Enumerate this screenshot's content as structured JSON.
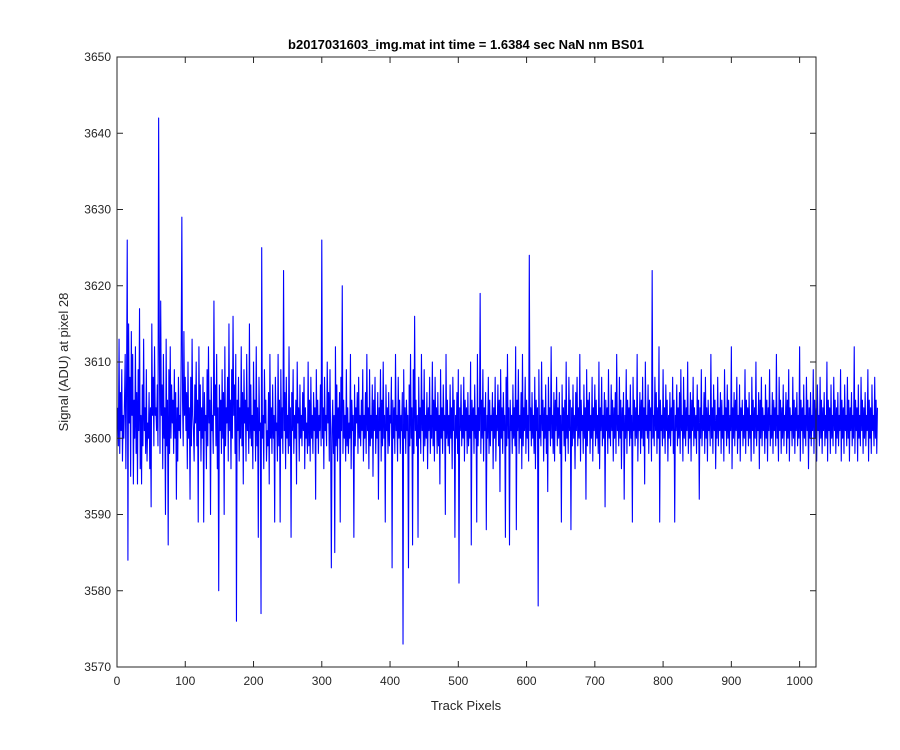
{
  "chart_data": {
    "type": "line",
    "title": "b2017031603_img.mat int time = 1.6384 sec  NaN nm BS01",
    "xlabel": "Track Pixels",
    "ylabel": "Signal (ADU) at pixel 28",
    "xlim": [
      0,
      1024
    ],
    "ylim": [
      3570,
      3650
    ],
    "xticks": [
      0,
      100,
      200,
      300,
      400,
      500,
      600,
      700,
      800,
      900,
      1000
    ],
    "yticks": [
      3570,
      3580,
      3590,
      3600,
      3610,
      3620,
      3630,
      3640,
      3650
    ],
    "grid": false,
    "legend": "none",
    "series": [
      {
        "color": "#0000ff",
        "x_start": 1,
        "x_step": 1,
        "values": [
          3604,
          3599,
          3613,
          3598,
          3606,
          3601,
          3609,
          3597,
          3603,
          3600,
          3605,
          3611,
          3596,
          3607,
          3626,
          3584,
          3615,
          3602,
          3608,
          3595,
          3614,
          3603,
          3611,
          3594,
          3605,
          3600,
          3612,
          3598,
          3606,
          3594,
          3609,
          3601,
          3617,
          3596,
          3603,
          3594,
          3607,
          3599,
          3613,
          3601,
          3604,
          3598,
          3609,
          3597,
          3602,
          3600,
          3606,
          3596,
          3604,
          3591,
          3615,
          3603,
          3608,
          3599,
          3612,
          3603,
          3604,
          3601,
          3607,
          3599,
          3642,
          3612,
          3598,
          3618,
          3603,
          3607,
          3596,
          3611,
          3600,
          3604,
          3590,
          3613,
          3599,
          3605,
          3586,
          3609,
          3598,
          3612,
          3600,
          3607,
          3602,
          3605,
          3598,
          3609,
          3600,
          3606,
          3592,
          3604,
          3597,
          3608,
          3601,
          3603,
          3600,
          3611,
          3629,
          3605,
          3599,
          3614,
          3603,
          3608,
          3601,
          3606,
          3596,
          3610,
          3600,
          3604,
          3592,
          3608,
          3599,
          3613,
          3603,
          3601,
          3597,
          3607,
          3602,
          3610,
          3599,
          3605,
          3589,
          3612,
          3601,
          3607,
          3597,
          3604,
          3600,
          3608,
          3589,
          3606,
          3601,
          3603,
          3596,
          3609,
          3599,
          3612,
          3602,
          3605,
          3590,
          3608,
          3601,
          3603,
          3598,
          3618,
          3603,
          3607,
          3599,
          3611,
          3596,
          3604,
          3580,
          3607,
          3601,
          3605,
          3598,
          3609,
          3600,
          3606,
          3590,
          3612,
          3599,
          3604,
          3602,
          3608,
          3597,
          3615,
          3601,
          3605,
          3596,
          3609,
          3600,
          3616,
          3603,
          3607,
          3598,
          3611,
          3576,
          3605,
          3601,
          3608,
          3597,
          3604,
          3600,
          3612,
          3599,
          3606,
          3594,
          3609,
          3602,
          3605,
          3597,
          3611,
          3601,
          3604,
          3598,
          3615,
          3600,
          3607,
          3599,
          3603,
          3596,
          3610,
          3601,
          3605,
          3597,
          3612,
          3599,
          3604,
          3587,
          3608,
          3601,
          3602,
          3577,
          3625,
          3600,
          3603,
          3596,
          3609,
          3602,
          3605,
          3597,
          3601,
          3599,
          3606,
          3594,
          3611,
          3600,
          3604,
          3598,
          3607,
          3600,
          3603,
          3589,
          3608,
          3601,
          3602,
          3597,
          3611,
          3599,
          3605,
          3589,
          3609,
          3600,
          3604,
          3598,
          3622,
          3601,
          3606,
          3596,
          3608,
          3600,
          3603,
          3598,
          3612,
          3599,
          3604,
          3587,
          3606,
          3601,
          3609,
          3598,
          3603,
          3600,
          3605,
          3594,
          3610,
          3602,
          3604,
          3597,
          3607,
          3600,
          3603,
          3599,
          3606,
          3601,
          3608,
          3596,
          3604,
          3600,
          3602,
          3598,
          3610,
          3599,
          3605,
          3597,
          3608,
          3600,
          3603,
          3598,
          3606,
          3601,
          3604,
          3592,
          3609,
          3600,
          3605,
          3598,
          3603,
          3601,
          3607,
          3599,
          3626,
          3600,
          3604,
          3596,
          3608,
          3601,
          3603,
          3599,
          3610,
          3602,
          3606,
          3597,
          3609,
          3600,
          3583,
          3601,
          3605,
          3598,
          3603,
          3585,
          3612,
          3599,
          3607,
          3597,
          3604,
          3600,
          3606,
          3589,
          3608,
          3601,
          3620,
          3598,
          3605,
          3600,
          3603,
          3597,
          3609,
          3599,
          3604,
          3598,
          3602,
          3600,
          3611,
          3596,
          3605,
          3601,
          3603,
          3587,
          3607,
          3599,
          3604,
          3602,
          3606,
          3598,
          3608,
          3600,
          3603,
          3599,
          3605,
          3601,
          3609,
          3597,
          3603,
          3600,
          3606,
          3598,
          3611,
          3601,
          3604,
          3596,
          3609,
          3599,
          3603,
          3600,
          3607,
          3595,
          3605,
          3601,
          3608,
          3598,
          3603,
          3600,
          3606,
          3592,
          3604,
          3601,
          3609,
          3597,
          3605,
          3599,
          3610,
          3600,
          3603,
          3589,
          3607,
          3601,
          3604,
          3598,
          3606,
          3599,
          3603,
          3602,
          3608,
          3583,
          3605,
          3600,
          3604,
          3598,
          3611,
          3601,
          3603,
          3597,
          3608,
          3600,
          3605,
          3598,
          3603,
          3601,
          3606,
          3573,
          3609,
          3600,
          3604,
          3598,
          3605,
          3601,
          3603,
          3583,
          3607,
          3599,
          3611,
          3600,
          3604,
          3586,
          3609,
          3598,
          3616,
          3601,
          3605,
          3599,
          3603,
          3587,
          3608,
          3600,
          3604,
          3598,
          3611,
          3601,
          3605,
          3597,
          3609,
          3599,
          3603,
          3600,
          3606,
          3596,
          3604,
          3601,
          3608,
          3598,
          3603,
          3600,
          3610,
          3599,
          3605,
          3597,
          3608,
          3601,
          3604,
          3598,
          3606,
          3599,
          3603,
          3594,
          3609,
          3600,
          3604,
          3598,
          3607,
          3601,
          3603,
          3590,
          3611,
          3600,
          3605,
          3599,
          3603,
          3598,
          3607,
          3600,
          3604,
          3596,
          3608,
          3601,
          3605,
          3587,
          3603,
          3600,
          3606,
          3598,
          3609,
          3581,
          3604,
          3601,
          3607,
          3599,
          3603,
          3600,
          3608,
          3597,
          3605,
          3601,
          3604,
          3598,
          3606,
          3599,
          3603,
          3600,
          3610,
          3586,
          3605,
          3601,
          3604,
          3598,
          3607,
          3600,
          3603,
          3589,
          3611,
          3599,
          3604,
          3601,
          3619,
          3598,
          3605,
          3600,
          3609,
          3597,
          3604,
          3601,
          3606,
          3588,
          3603,
          3600,
          3608,
          3598,
          3605,
          3599,
          3603,
          3601,
          3606,
          3596,
          3604,
          3600,
          3608,
          3597,
          3603,
          3601,
          3607,
          3599,
          3605,
          3593,
          3609,
          3600,
          3604,
          3598,
          3606,
          3601,
          3603,
          3587,
          3608,
          3599,
          3611,
          3600,
          3604,
          3586,
          3605,
          3601,
          3603,
          3598,
          3607,
          3600,
          3604,
          3599,
          3612,
          3588,
          3605,
          3601,
          3609,
          3598,
          3603,
          3600,
          3606,
          3596,
          3611,
          3599,
          3604,
          3601,
          3608,
          3598,
          3605,
          3600,
          3603,
          3597,
          3624,
          3601,
          3604,
          3599,
          3606,
          3600,
          3603,
          3598,
          3608,
          3596,
          3605,
          3601,
          3604,
          3578,
          3609,
          3600,
          3603,
          3599,
          3610,
          3601,
          3605,
          3597,
          3604,
          3600,
          3607,
          3598,
          3603,
          3593,
          3608,
          3601,
          3604,
          3599,
          3612,
          3600,
          3603,
          3598,
          3606,
          3597,
          3605,
          3601,
          3608,
          3599,
          3604,
          3600,
          3606,
          3598,
          3603,
          3589,
          3607,
          3601,
          3604,
          3599,
          3605,
          3597,
          3610,
          3600,
          3603,
          3598,
          3608,
          3601,
          3605,
          3588,
          3604,
          3599,
          3607,
          3600,
          3603,
          3596,
          3606,
          3601,
          3608,
          3599,
          3604,
          3600,
          3611,
          3597,
          3605,
          3601,
          3603,
          3598,
          3607,
          3600,
          3604,
          3592,
          3609,
          3599,
          3605,
          3601,
          3606,
          3598,
          3603,
          3600,
          3608,
          3597,
          3604,
          3601,
          3607,
          3599,
          3605,
          3600,
          3603,
          3598,
          3610,
          3596,
          3604,
          3601,
          3608,
          3599,
          3603,
          3600,
          3606,
          3591,
          3605,
          3601,
          3604,
          3598,
          3609,
          3600,
          3603,
          3599,
          3607,
          3601,
          3605,
          3597,
          3604,
          3600,
          3606,
          3598,
          3611,
          3601,
          3603,
          3599,
          3608,
          3600,
          3605,
          3596,
          3604,
          3601,
          3606,
          3592,
          3603,
          3600,
          3609,
          3598,
          3605,
          3601,
          3604,
          3599,
          3607,
          3600,
          3603,
          3589,
          3608,
          3601,
          3605,
          3599,
          3604,
          3600,
          3611,
          3597,
          3603,
          3601,
          3606,
          3598,
          3605,
          3600,
          3608,
          3599,
          3604,
          3594,
          3610,
          3601,
          3603,
          3600,
          3607,
          3598,
          3605,
          3601,
          3604,
          3597,
          3622,
          3600,
          3603,
          3599,
          3608,
          3601,
          3606,
          3598,
          3604,
          3600,
          3612,
          3589,
          3605,
          3601,
          3603,
          3599,
          3609,
          3600,
          3604,
          3598,
          3607,
          3601,
          3605,
          3597,
          3603,
          3600,
          3606,
          3599,
          3604,
          3601,
          3608,
          3598,
          3605,
          3589,
          3603,
          3601,
          3607,
          3599,
          3604,
          3600,
          3606,
          3598,
          3609,
          3601,
          3603,
          3597,
          3608,
          3600,
          3605,
          3599,
          3604,
          3601,
          3610,
          3598,
          3603,
          3600,
          3606,
          3597,
          3605,
          3601,
          3608,
          3599,
          3604,
          3600,
          3603,
          3598,
          3607,
          3601,
          3605,
          3592,
          3604,
          3600,
          3609,
          3599,
          3603,
          3601,
          3606,
          3598,
          3608,
          3600,
          3604,
          3597,
          3605,
          3601,
          3603,
          3599,
          3611,
          3600,
          3604,
          3598,
          3607,
          3601,
          3605,
          3596,
          3603,
          3600,
          3608,
          3599,
          3604,
          3601,
          3606,
          3598,
          3605,
          3600,
          3603,
          3597,
          3609,
          3601,
          3604,
          3599,
          3607,
          3600,
          3605,
          3598,
          3603,
          3601,
          3612,
          3596,
          3604,
          3600,
          3606,
          3599,
          3605,
          3601,
          3608,
          3598,
          3603,
          3600,
          3607,
          3597,
          3604,
          3601,
          3605,
          3599,
          3603,
          3600,
          3609,
          3598,
          3605,
          3601,
          3604,
          3599,
          3606,
          3600,
          3603,
          3597,
          3608,
          3601,
          3605,
          3598,
          3604,
          3600,
          3610,
          3599,
          3603,
          3601,
          3606,
          3596,
          3605,
          3600,
          3608,
          3599,
          3604,
          3601,
          3603,
          3598,
          3607,
          3600,
          3605,
          3597,
          3604,
          3601,
          3609,
          3599,
          3603,
          3600,
          3606,
          3598,
          3605,
          3601,
          3604,
          3599,
          3611,
          3600,
          3603,
          3597,
          3608,
          3601,
          3605,
          3598,
          3604,
          3600,
          3607,
          3599,
          3603,
          3601,
          3606,
          3598,
          3605,
          3600,
          3609,
          3597,
          3604,
          3601,
          3603,
          3599,
          3608,
          3600,
          3605,
          3598,
          3604,
          3601,
          3606,
          3599,
          3603,
          3600,
          3612,
          3597,
          3605,
          3601,
          3604,
          3598,
          3607,
          3600,
          3603,
          3599,
          3608,
          3601,
          3605,
          3596,
          3604,
          3600,
          3606,
          3599,
          3603,
          3601,
          3609,
          3598,
          3605,
          3600,
          3604,
          3597,
          3607,
          3601,
          3603,
          3599,
          3608,
          3600,
          3605,
          3598,
          3604,
          3601,
          3606,
          3599,
          3603,
          3600,
          3610,
          3597,
          3605,
          3601,
          3604,
          3598,
          3607,
          3600,
          3603,
          3599,
          3608,
          3601,
          3605,
          3598,
          3604,
          3600,
          3606,
          3599,
          3603,
          3601,
          3609,
          3597,
          3605,
          3600,
          3604,
          3598,
          3607,
          3601,
          3603,
          3599,
          3608,
          3600,
          3605,
          3597,
          3604,
          3601,
          3606,
          3599,
          3603,
          3600,
          3612,
          3598,
          3605,
          3601,
          3604,
          3597,
          3607,
          3600,
          3603,
          3599,
          3608,
          3601,
          3605,
          3598,
          3604,
          3600,
          3606,
          3599,
          3603,
          3601,
          3609,
          3597,
          3605,
          3600,
          3604,
          3598,
          3607,
          3601,
          3603,
          3599,
          3608,
          3600,
          3605,
          3598,
          3604
        ]
      }
    ]
  }
}
